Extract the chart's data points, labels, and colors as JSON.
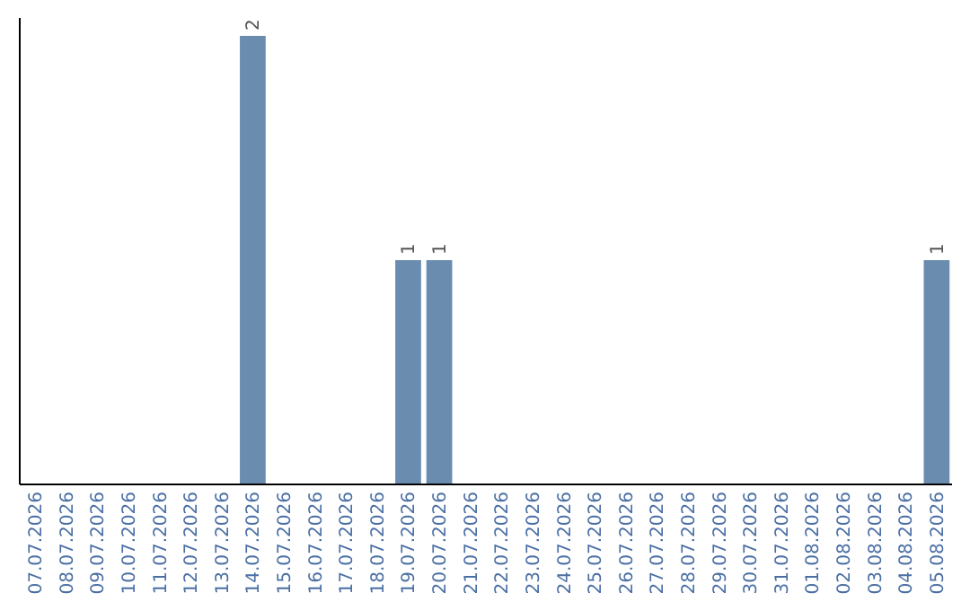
{
  "chart_data": {
    "type": "bar",
    "categories": [
      "07.07.2026",
      "08.07.2026",
      "09.07.2026",
      "10.07.2026",
      "11.07.2026",
      "12.07.2026",
      "13.07.2026",
      "14.07.2026",
      "15.07.2026",
      "16.07.2026",
      "17.07.2026",
      "18.07.2026",
      "19.07.2026",
      "20.07.2026",
      "21.07.2026",
      "22.07.2026",
      "23.07.2026",
      "24.07.2026",
      "25.07.2026",
      "26.07.2026",
      "27.07.2026",
      "28.07.2026",
      "29.07.2026",
      "30.07.2026",
      "31.07.2026",
      "01.08.2026",
      "02.08.2026",
      "03.08.2026",
      "04.08.2026",
      "05.08.2026"
    ],
    "values": [
      0,
      0,
      0,
      0,
      0,
      0,
      0,
      2,
      0,
      0,
      0,
      0,
      1,
      1,
      0,
      0,
      0,
      0,
      0,
      0,
      0,
      0,
      0,
      0,
      0,
      0,
      0,
      0,
      0,
      1
    ],
    "value_labels": [
      null,
      null,
      null,
      null,
      null,
      null,
      null,
      "2",
      null,
      null,
      null,
      null,
      "1",
      "1",
      null,
      null,
      null,
      null,
      null,
      null,
      null,
      null,
      null,
      null,
      null,
      null,
      null,
      null,
      null,
      "1"
    ],
    "color": "#6a8caf",
    "ylim": [
      0,
      2.08
    ],
    "tick_labels": "x"
  }
}
